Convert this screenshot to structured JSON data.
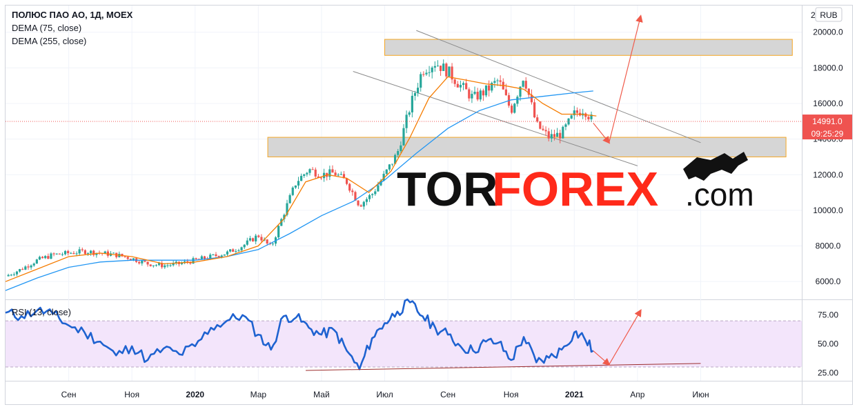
{
  "header": {
    "instrument": "ПОЛЮС ПАО АО, 1Д, MOEX",
    "indicator_1": "DEMA (75, close)",
    "indicator_2": "DEMA (255, close)",
    "currency": "RUB",
    "axis_top_partial": "2"
  },
  "price_tag": {
    "value": "14991.0",
    "timer": "09:25:29"
  },
  "rsi": {
    "label": "RSI (13, close)"
  },
  "watermark": {
    "part1": "TOR",
    "part2": "FOREX",
    "part3": ".com"
  },
  "colors": {
    "candle": "#26a69a",
    "candle_down": "#ef5350",
    "dema75": "#f57c00",
    "dema255": "#2196f3",
    "rsi_line": "#1e62d0",
    "rsi_band": "#f3e5fb",
    "zone_fill": "#d6d6d6",
    "zone_border": "#f5a623",
    "arrow": "#f05a4a",
    "price_line": "#ef5350"
  },
  "chart_data": [
    {
      "type": "line",
      "name": "price",
      "y_ticks": [
        "20000.0",
        "18000.0",
        "16000.0",
        "14000.0",
        "12000.0",
        "10000.0",
        "8000.0",
        "6000.0"
      ],
      "y_tick_values": [
        20000,
        18000,
        16000,
        14000,
        12000,
        10000,
        8000,
        6000
      ],
      "ylim": [
        5000,
        21500
      ],
      "x_ticks": [
        "Сен",
        "Ноя",
        "2020",
        "Мар",
        "Май",
        "Июл",
        "Сен",
        "Ноя",
        "2021",
        "Апр",
        "Июн"
      ],
      "x_tick_index": [
        2,
        4,
        6,
        8,
        10,
        12,
        14,
        16,
        18,
        20,
        22
      ],
      "x_range": [
        0,
        25.2
      ],
      "close": [
        [
          0.0,
          6300
        ],
        [
          0.5,
          6700
        ],
        [
          1.0,
          7200
        ],
        [
          1.5,
          7500
        ],
        [
          2.0,
          7600
        ],
        [
          2.5,
          7700
        ],
        [
          3.0,
          7600
        ],
        [
          3.5,
          7500
        ],
        [
          4.0,
          7300
        ],
        [
          4.5,
          7000
        ],
        [
          5.0,
          6900
        ],
        [
          5.5,
          7000
        ],
        [
          6.0,
          7200
        ],
        [
          6.5,
          7400
        ],
        [
          7.0,
          7600
        ],
        [
          7.5,
          8000
        ],
        [
          8.0,
          8600
        ],
        [
          8.4,
          7900
        ],
        [
          8.8,
          9800
        ],
        [
          9.2,
          11600
        ],
        [
          9.6,
          12300
        ],
        [
          10.0,
          12000
        ],
        [
          10.4,
          12100
        ],
        [
          10.8,
          11600
        ],
        [
          11.2,
          10300
        ],
        [
          11.6,
          10900
        ],
        [
          12.0,
          12000
        ],
        [
          12.4,
          13200
        ],
        [
          12.8,
          15800
        ],
        [
          13.2,
          17900
        ],
        [
          13.6,
          18300
        ],
        [
          14.0,
          17800
        ],
        [
          14.4,
          17000
        ],
        [
          14.8,
          16300
        ],
        [
          15.2,
          16700
        ],
        [
          15.6,
          17300
        ],
        [
          16.0,
          15600
        ],
        [
          16.4,
          17600
        ],
        [
          16.8,
          14800
        ],
        [
          17.2,
          14100
        ],
        [
          17.6,
          14300
        ],
        [
          18.0,
          15400
        ],
        [
          18.3,
          15700
        ],
        [
          18.6,
          14991
        ]
      ],
      "dema75": [
        [
          0.0,
          6000
        ],
        [
          1.0,
          6700
        ],
        [
          2.0,
          7400
        ],
        [
          3.0,
          7600
        ],
        [
          4.0,
          7400
        ],
        [
          5.0,
          7000
        ],
        [
          6.0,
          7100
        ],
        [
          7.0,
          7400
        ],
        [
          8.0,
          8000
        ],
        [
          8.8,
          9500
        ],
        [
          9.5,
          11600
        ],
        [
          10.2,
          12000
        ],
        [
          10.8,
          11800
        ],
        [
          11.5,
          11000
        ],
        [
          12.2,
          12200
        ],
        [
          12.8,
          14100
        ],
        [
          13.4,
          16300
        ],
        [
          14.0,
          17500
        ],
        [
          14.6,
          17300
        ],
        [
          15.2,
          17100
        ],
        [
          15.8,
          17000
        ],
        [
          16.4,
          16800
        ],
        [
          17.0,
          16000
        ],
        [
          17.6,
          15400
        ],
        [
          18.2,
          15400
        ],
        [
          18.7,
          15300
        ]
      ],
      "dema255": [
        [
          0.0,
          5500
        ],
        [
          1.0,
          6200
        ],
        [
          2.0,
          6800
        ],
        [
          3.0,
          7100
        ],
        [
          4.0,
          7200
        ],
        [
          5.0,
          7200
        ],
        [
          6.0,
          7200
        ],
        [
          7.0,
          7400
        ],
        [
          8.0,
          7800
        ],
        [
          9.0,
          8700
        ],
        [
          10.0,
          9700
        ],
        [
          11.0,
          10500
        ],
        [
          12.0,
          11700
        ],
        [
          13.0,
          13200
        ],
        [
          14.0,
          14600
        ],
        [
          15.0,
          15600
        ],
        [
          16.0,
          16200
        ],
        [
          17.0,
          16400
        ],
        [
          18.0,
          16600
        ],
        [
          18.6,
          16700
        ]
      ],
      "last_price": 14991,
      "resistance_zone": [
        18700,
        19600
      ],
      "support_zone": [
        13000,
        14100
      ],
      "channel_upper": [
        [
          13.0,
          20100
        ],
        [
          22.0,
          13800
        ]
      ],
      "channel_lower": [
        [
          11.0,
          17800
        ],
        [
          20.0,
          12500
        ]
      ],
      "arrows": [
        {
          "from": [
            18.6,
            14900
          ],
          "to": [
            19.1,
            13800
          ]
        },
        {
          "from": [
            19.1,
            13800
          ],
          "to": [
            20.1,
            20900
          ]
        }
      ]
    },
    {
      "type": "line",
      "name": "RSI (13, close)",
      "y_ticks": [
        "75.00",
        "50.00",
        "25.00"
      ],
      "y_tick_values": [
        75,
        50,
        25
      ],
      "ylim": [
        18,
        88
      ],
      "band": [
        30,
        70
      ],
      "values": [
        [
          0.0,
          77
        ],
        [
          0.5,
          74
        ],
        [
          1.0,
          79
        ],
        [
          1.5,
          76
        ],
        [
          2.0,
          66
        ],
        [
          2.5,
          60
        ],
        [
          3.0,
          52
        ],
        [
          3.5,
          40
        ],
        [
          4.0,
          48
        ],
        [
          4.5,
          36
        ],
        [
          5.0,
          46
        ],
        [
          5.5,
          41
        ],
        [
          6.0,
          48
        ],
        [
          6.5,
          64
        ],
        [
          7.0,
          70
        ],
        [
          7.5,
          75
        ],
        [
          8.0,
          58
        ],
        [
          8.4,
          45
        ],
        [
          8.8,
          74
        ],
        [
          9.2,
          73
        ],
        [
          9.6,
          64
        ],
        [
          10.0,
          58
        ],
        [
          10.4,
          62
        ],
        [
          10.8,
          44
        ],
        [
          11.2,
          28
        ],
        [
          11.6,
          55
        ],
        [
          12.0,
          68
        ],
        [
          12.4,
          78
        ],
        [
          12.8,
          86
        ],
        [
          13.2,
          74
        ],
        [
          13.6,
          64
        ],
        [
          14.0,
          58
        ],
        [
          14.4,
          48
        ],
        [
          14.8,
          44
        ],
        [
          15.2,
          52
        ],
        [
          15.6,
          51
        ],
        [
          16.0,
          36
        ],
        [
          16.4,
          56
        ],
        [
          16.8,
          34
        ],
        [
          17.2,
          38
        ],
        [
          17.6,
          45
        ],
        [
          18.0,
          60
        ],
        [
          18.3,
          56
        ],
        [
          18.6,
          44
        ]
      ],
      "trendline": [
        [
          9.5,
          27
        ],
        [
          22.0,
          33
        ]
      ],
      "arrows": [
        {
          "from": [
            18.6,
            44
          ],
          "to": [
            19.1,
            32
          ]
        },
        {
          "from": [
            19.1,
            32
          ],
          "to": [
            20.1,
            79
          ]
        }
      ]
    }
  ]
}
